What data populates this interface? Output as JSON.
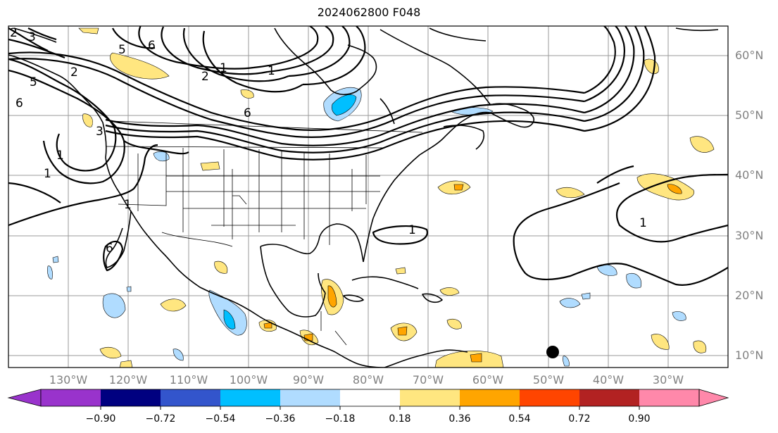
{
  "title": "2024062800 F048",
  "map": {
    "lon_labels": [
      "130°W",
      "120°W",
      "110°W",
      "100°W",
      "90°W",
      "80°W",
      "70°W",
      "60°W",
      "50°W",
      "40°W",
      "30°W"
    ],
    "lat_labels": [
      "60°N",
      "50°N",
      "40°N",
      "30°N",
      "20°N",
      "10°N"
    ],
    "contour_labels": [
      "3",
      "2",
      "5",
      "5",
      "6",
      "2",
      "6",
      "1",
      "1",
      "1",
      "1",
      "1",
      "2",
      "3",
      "6",
      "6",
      "1",
      "1"
    ],
    "marker": "filled-circle"
  },
  "colorbar": {
    "tick_labels": [
      "−0.90",
      "−0.72",
      "−0.54",
      "−0.36",
      "−0.18",
      "0.18",
      "0.36",
      "0.54",
      "0.72",
      "0.90"
    ],
    "colors": [
      "#9933cc",
      "#000080",
      "#3355cc",
      "#00bfff",
      "#b0dcff",
      "#ffffff",
      "#ffe680",
      "#ffa500",
      "#ff4500",
      "#b22222",
      "#ff88aa"
    ]
  }
}
